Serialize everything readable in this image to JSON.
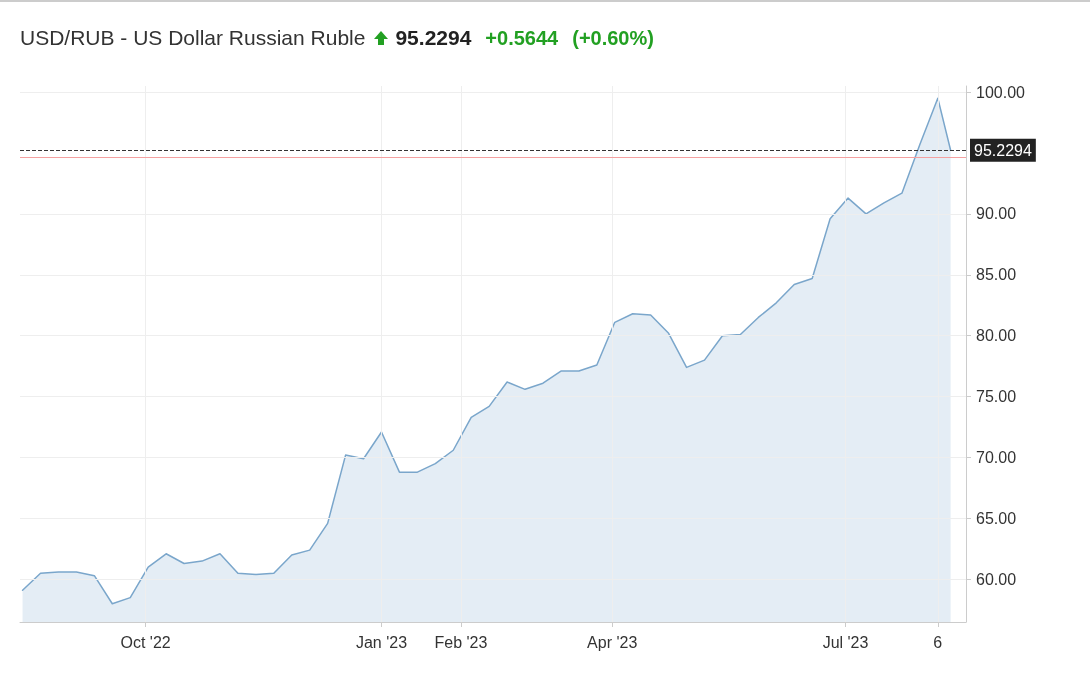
{
  "chart_data": {
    "type": "area",
    "title": "USD/RUB - US Dollar Russian Ruble",
    "annotations": [
      "95.2294",
      "+0.5644",
      "(+0.60%)"
    ],
    "x": [
      "2022-08-14",
      "2022-08-21",
      "2022-08-28",
      "2022-09-04",
      "2022-09-11",
      "2022-09-18",
      "2022-09-25",
      "2022-10-02",
      "2022-10-09",
      "2022-10-16",
      "2022-10-23",
      "2022-10-30",
      "2022-11-06",
      "2022-11-13",
      "2022-11-20",
      "2022-11-27",
      "2022-12-04",
      "2022-12-11",
      "2022-12-18",
      "2022-12-25",
      "2023-01-01",
      "2023-01-08",
      "2023-01-15",
      "2023-01-22",
      "2023-01-29",
      "2023-02-05",
      "2023-02-12",
      "2023-02-19",
      "2023-02-26",
      "2023-03-05",
      "2023-03-12",
      "2023-03-19",
      "2023-03-26",
      "2023-04-02",
      "2023-04-09",
      "2023-04-16",
      "2023-04-23",
      "2023-04-30",
      "2023-05-07",
      "2023-05-14",
      "2023-05-21",
      "2023-05-28",
      "2023-06-04",
      "2023-06-11",
      "2023-06-18",
      "2023-06-25",
      "2023-07-02",
      "2023-07-09",
      "2023-07-16",
      "2023-07-23",
      "2023-07-30",
      "2023-08-06",
      "2023-08-11"
    ],
    "series": [
      {
        "color": "#7aa6cb",
        "values": [
          59.1,
          60.5,
          60.6,
          60.6,
          60.3,
          58.0,
          58.5,
          61.0,
          62.1,
          61.3,
          61.5,
          62.1,
          60.5,
          60.4,
          60.5,
          62.0,
          62.4,
          64.6,
          70.2,
          69.9,
          72.1,
          68.8,
          68.8,
          69.5,
          70.6,
          73.3,
          74.2,
          76.2,
          75.6,
          76.1,
          77.1,
          77.1,
          77.6,
          81.1,
          81.8,
          81.7,
          80.2,
          77.4,
          78.0,
          80.0,
          80.1,
          81.5,
          82.7,
          84.2,
          84.7,
          89.6,
          91.3,
          90.0,
          90.9,
          91.7,
          95.7,
          99.5,
          95.2294
        ]
      }
    ],
    "xlim": [
      "2022-08-13",
      "2023-08-17"
    ],
    "xticks": [
      {
        "value": "2022-10-01",
        "label": "Oct '22"
      },
      {
        "value": "2023-01-01",
        "label": "Jan '23"
      },
      {
        "value": "2023-02-01",
        "label": "Feb '23"
      },
      {
        "value": "2023-04-01",
        "label": "Apr '23"
      },
      {
        "value": "2023-07-01",
        "label": "Jul '23"
      },
      {
        "value": "2023-08-06",
        "label": "6"
      }
    ],
    "ylim": [
      56.5,
      100.5
    ],
    "yticks": [
      {
        "value": 60,
        "label": "60.00"
      },
      {
        "value": 65,
        "label": "65.00"
      },
      {
        "value": 70,
        "label": "70.00"
      },
      {
        "value": 75,
        "label": "75.00"
      },
      {
        "value": 80,
        "label": "80.00"
      },
      {
        "value": 85,
        "label": "85.00"
      },
      {
        "value": 90,
        "label": "90.00"
      },
      {
        "value": 100,
        "label": "100.00"
      }
    ],
    "ref_lines": [
      {
        "axis": "y",
        "value": 95.2294,
        "label": "95.2294",
        "color": "#333333",
        "line_style": "dashed"
      },
      {
        "axis": "y",
        "value": 94.665,
        "color": "#f4a0a0",
        "line_style": "solid"
      }
    ],
    "grid": true,
    "marker": "none",
    "line_style": "solid"
  }
}
